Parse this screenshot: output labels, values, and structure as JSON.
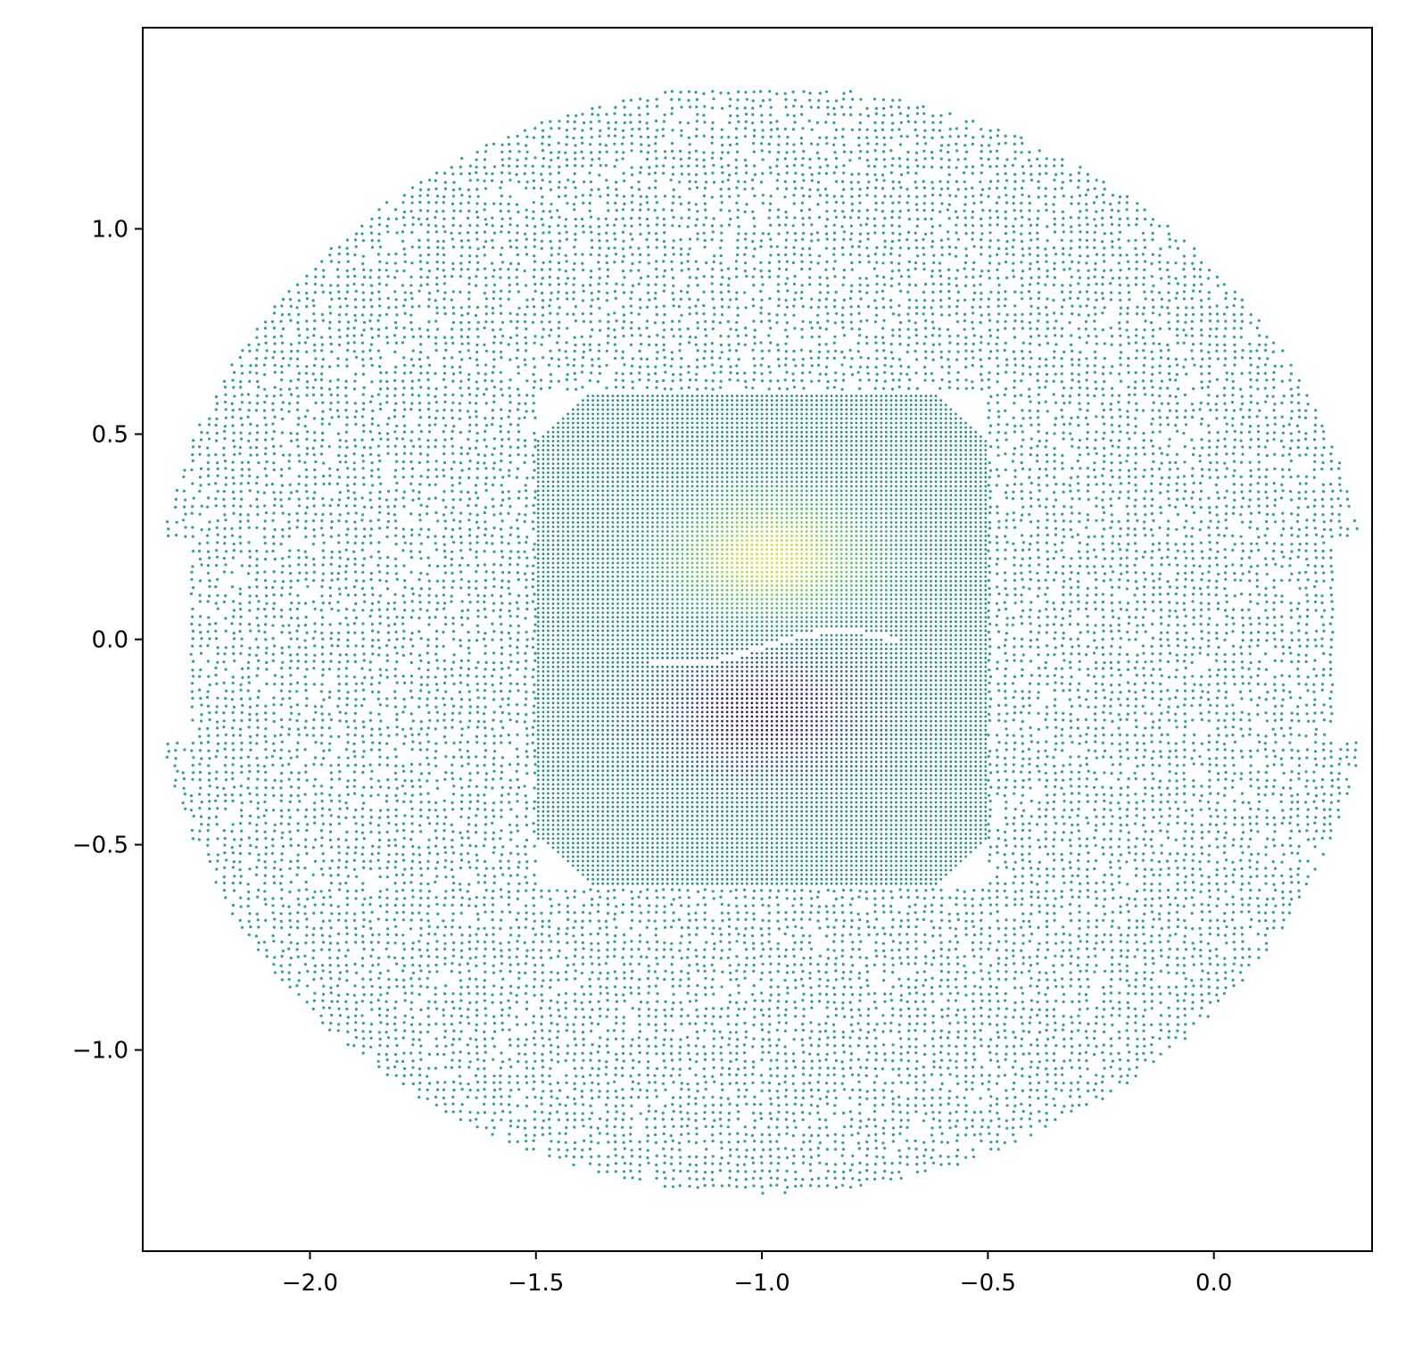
{
  "chart_data": {
    "type": "scatter",
    "title": "",
    "xlabel": "",
    "ylabel": "",
    "xlim": [
      -2.37,
      0.35
    ],
    "ylim": [
      -1.49,
      1.49
    ],
    "x_ticks": [
      {
        "value": -2.0,
        "label": "−2.0"
      },
      {
        "value": -1.5,
        "label": "−1.5"
      },
      {
        "value": -1.0,
        "label": "−1.0"
      },
      {
        "value": -0.5,
        "label": "−0.5"
      },
      {
        "value": 0.0,
        "label": "0.0"
      }
    ],
    "y_ticks": [
      {
        "value": 1.0,
        "label": "1.0"
      },
      {
        "value": 0.5,
        "label": "0.5"
      },
      {
        "value": 0.0,
        "label": "0.0"
      },
      {
        "value": -0.5,
        "label": "−0.5"
      },
      {
        "value": -1.0,
        "label": "−1.0"
      }
    ],
    "grid": false,
    "legend": "none",
    "colormap": "viridis",
    "base_color": "#2fa08a",
    "outer_disc": {
      "center": [
        -1.0,
        0.0
      ],
      "radius": 1.35
    },
    "inner_square": {
      "x_range": [
        -1.5,
        -0.5
      ],
      "y_range": [
        -0.6,
        0.6
      ]
    },
    "high_value_cluster": {
      "center": [
        -0.98,
        0.2
      ],
      "color": "#d5e21f"
    },
    "low_value_cluster": {
      "center": [
        -1.0,
        -0.18
      ],
      "color": "#3b1c6b"
    }
  }
}
